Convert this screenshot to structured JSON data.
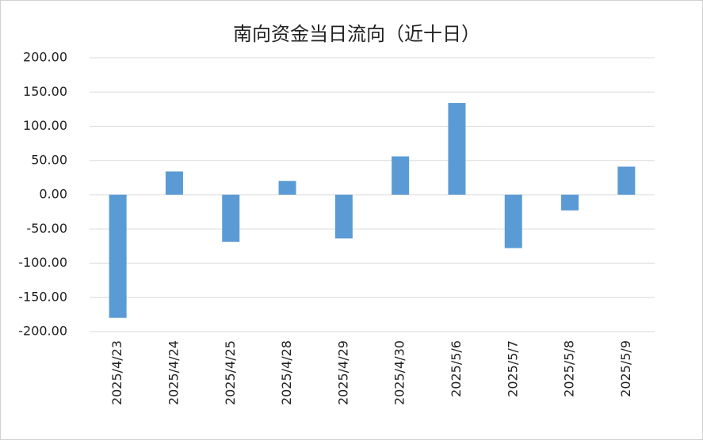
{
  "chart_data": {
    "type": "bar",
    "title": "南向资金当日流向（近十日）",
    "categories": [
      "2025/4/23",
      "2025/4/24",
      "2025/4/25",
      "2025/4/28",
      "2025/4/29",
      "2025/4/30",
      "2025/5/6",
      "2025/5/7",
      "2025/5/8",
      "2025/5/9"
    ],
    "values": [
      -180,
      34,
      -69,
      20,
      -64,
      56,
      134,
      -78,
      -23,
      41
    ],
    "color": "#5b9bd5",
    "ylim": [
      -200,
      200
    ],
    "yticks": [
      {
        "value": -200,
        "label": "-200.00"
      },
      {
        "value": -150,
        "label": "-150.00"
      },
      {
        "value": -100,
        "label": "-100.00"
      },
      {
        "value": -50,
        "label": "-50.00"
      },
      {
        "value": 0,
        "label": "0.00"
      },
      {
        "value": 50,
        "label": "50.00"
      },
      {
        "value": 100,
        "label": "100.00"
      },
      {
        "value": 150,
        "label": "150.00"
      },
      {
        "value": 200,
        "label": "200.00"
      }
    ],
    "grid": true
  }
}
